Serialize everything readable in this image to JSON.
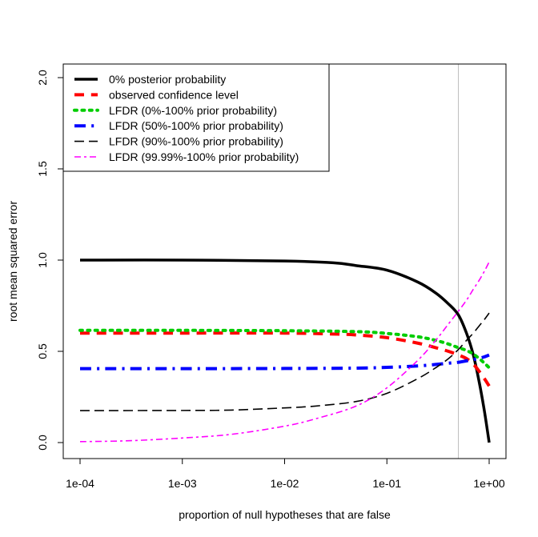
{
  "chart_data": {
    "type": "line",
    "title": "",
    "xlabel": "proportion of null hypotheses that are false",
    "ylabel": "root mean squared error",
    "xscale": "log10",
    "xlim": [
      0.0001,
      1
    ],
    "ylim": [
      0,
      2
    ],
    "x_ticks": [
      {
        "value": 0.0001,
        "label": "1e-04"
      },
      {
        "value": 0.001,
        "label": "1e-03"
      },
      {
        "value": 0.01,
        "label": "1e-02"
      },
      {
        "value": 0.1,
        "label": "1e-01"
      },
      {
        "value": 1,
        "label": "1e+00"
      }
    ],
    "y_ticks": [
      {
        "value": 0.0,
        "label": "0.0"
      },
      {
        "value": 0.5,
        "label": "0.5"
      },
      {
        "value": 1.0,
        "label": "1.0"
      },
      {
        "value": 1.5,
        "label": "1.5"
      },
      {
        "value": 2.0,
        "label": "2.0"
      }
    ],
    "reference_line": {
      "x": 0.5,
      "color": "#bebebe"
    },
    "legend_position": "top-left",
    "series": [
      {
        "name": "0% posterior probability",
        "color": "#000000",
        "dash": "solid",
        "width": 3.5,
        "points": [
          [
            0.0001,
            1.0
          ],
          [
            0.001,
            1.0
          ],
          [
            0.01,
            0.995
          ],
          [
            0.03,
            0.985
          ],
          [
            0.05,
            0.97
          ],
          [
            0.1,
            0.945
          ],
          [
            0.2,
            0.88
          ],
          [
            0.3,
            0.82
          ],
          [
            0.4,
            0.76
          ],
          [
            0.5,
            0.7
          ],
          [
            0.6,
            0.6
          ],
          [
            0.7,
            0.48
          ],
          [
            0.8,
            0.33
          ],
          [
            0.9,
            0.17
          ],
          [
            1.0,
            0.0
          ]
        ]
      },
      {
        "name": "observed confidence level",
        "color": "#ff0000",
        "dash": "dashed",
        "width": 4,
        "points": [
          [
            0.0001,
            0.6
          ],
          [
            0.001,
            0.6
          ],
          [
            0.01,
            0.6
          ],
          [
            0.03,
            0.595
          ],
          [
            0.05,
            0.59
          ],
          [
            0.1,
            0.575
          ],
          [
            0.2,
            0.545
          ],
          [
            0.3,
            0.52
          ],
          [
            0.4,
            0.5
          ],
          [
            0.5,
            0.48
          ],
          [
            0.6,
            0.46
          ],
          [
            0.7,
            0.43
          ],
          [
            0.8,
            0.39
          ],
          [
            0.9,
            0.35
          ],
          [
            1.0,
            0.31
          ]
        ]
      },
      {
        "name": "LFDR (0%-100% prior probability)",
        "color": "#00cd00",
        "dash": "dotted",
        "width": 4,
        "points": [
          [
            0.0001,
            0.615
          ],
          [
            0.001,
            0.615
          ],
          [
            0.01,
            0.613
          ],
          [
            0.05,
            0.608
          ],
          [
            0.1,
            0.598
          ],
          [
            0.2,
            0.58
          ],
          [
            0.3,
            0.56
          ],
          [
            0.4,
            0.54
          ],
          [
            0.5,
            0.52
          ],
          [
            0.6,
            0.505
          ],
          [
            0.7,
            0.485
          ],
          [
            0.8,
            0.46
          ],
          [
            0.9,
            0.435
          ],
          [
            1.0,
            0.41
          ]
        ]
      },
      {
        "name": "LFDR (50%-100% prior probability)",
        "color": "#0000ff",
        "dash": "dashdot",
        "width": 4,
        "points": [
          [
            0.0001,
            0.405
          ],
          [
            0.001,
            0.405
          ],
          [
            0.01,
            0.406
          ],
          [
            0.05,
            0.408
          ],
          [
            0.1,
            0.412
          ],
          [
            0.2,
            0.42
          ],
          [
            0.3,
            0.428
          ],
          [
            0.4,
            0.435
          ],
          [
            0.5,
            0.44
          ],
          [
            0.6,
            0.448
          ],
          [
            0.7,
            0.455
          ],
          [
            0.8,
            0.462
          ],
          [
            0.9,
            0.47
          ],
          [
            1.0,
            0.48
          ]
        ]
      },
      {
        "name": "LFDR (90%-100% prior probability)",
        "color": "#000000",
        "dash": "longdash",
        "width": 1.6,
        "points": [
          [
            0.0001,
            0.175
          ],
          [
            0.001,
            0.176
          ],
          [
            0.003,
            0.178
          ],
          [
            0.01,
            0.19
          ],
          [
            0.02,
            0.2
          ],
          [
            0.05,
            0.225
          ],
          [
            0.1,
            0.27
          ],
          [
            0.2,
            0.35
          ],
          [
            0.3,
            0.41
          ],
          [
            0.4,
            0.46
          ],
          [
            0.5,
            0.51
          ],
          [
            0.6,
            0.56
          ],
          [
            0.7,
            0.6
          ],
          [
            0.8,
            0.64
          ],
          [
            0.9,
            0.675
          ],
          [
            1.0,
            0.71
          ]
        ]
      },
      {
        "name": "LFDR (99.99%-100% prior probability)",
        "color": "#ff00ff",
        "dash": "twodash",
        "width": 1.6,
        "points": [
          [
            0.0001,
            0.005
          ],
          [
            0.0003,
            0.01
          ],
          [
            0.001,
            0.025
          ],
          [
            0.003,
            0.045
          ],
          [
            0.01,
            0.09
          ],
          [
            0.02,
            0.13
          ],
          [
            0.05,
            0.2
          ],
          [
            0.1,
            0.3
          ],
          [
            0.2,
            0.45
          ],
          [
            0.3,
            0.56
          ],
          [
            0.4,
            0.65
          ],
          [
            0.5,
            0.72
          ],
          [
            0.6,
            0.78
          ],
          [
            0.7,
            0.84
          ],
          [
            0.8,
            0.89
          ],
          [
            0.9,
            0.94
          ],
          [
            1.0,
            0.99
          ]
        ]
      }
    ]
  }
}
